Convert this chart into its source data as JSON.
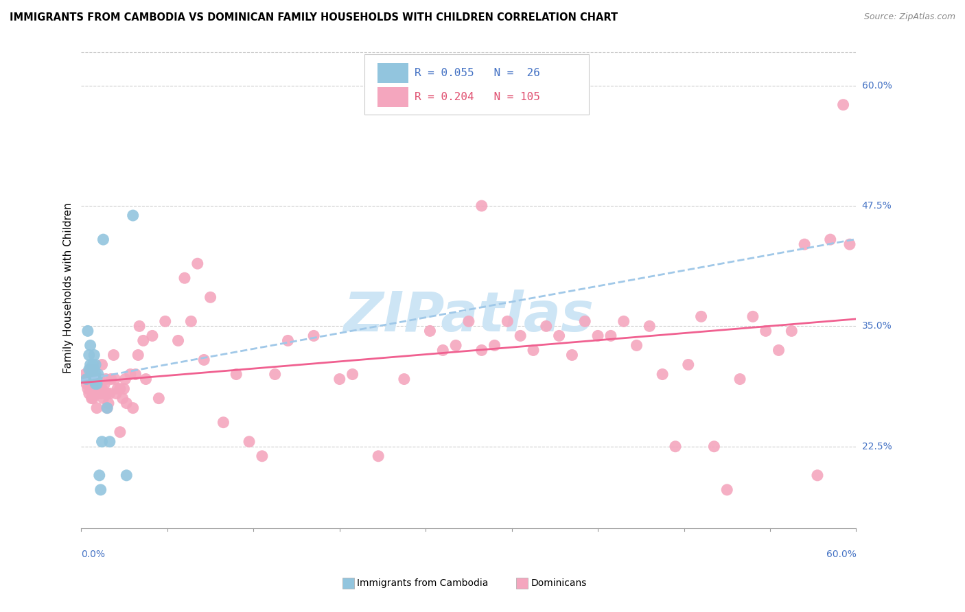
{
  "title": "IMMIGRANTS FROM CAMBODIA VS DOMINICAN FAMILY HOUSEHOLDS WITH CHILDREN CORRELATION CHART",
  "source": "Source: ZipAtlas.com",
  "ylabel": "Family Households with Children",
  "xmin": 0.0,
  "xmax": 0.6,
  "ymin": 0.14,
  "ymax": 0.64,
  "color_blue": "#92c5de",
  "color_pink": "#f4a6be",
  "color_blue_line": "#92c5de",
  "color_pink_line": "#f4607a",
  "watermark_color": "#cde5f5",
  "grid_color": "#cccccc",
  "right_label_color": "#4472c4",
  "blue_x": [
    0.004,
    0.005,
    0.006,
    0.006,
    0.007,
    0.007,
    0.008,
    0.008,
    0.009,
    0.009,
    0.01,
    0.01,
    0.011,
    0.011,
    0.011,
    0.012,
    0.012,
    0.013,
    0.014,
    0.015,
    0.016,
    0.017,
    0.02,
    0.022,
    0.035,
    0.04
  ],
  "blue_y": [
    0.295,
    0.345,
    0.32,
    0.305,
    0.33,
    0.31,
    0.305,
    0.3,
    0.31,
    0.295,
    0.305,
    0.32,
    0.29,
    0.3,
    0.31,
    0.29,
    0.295,
    0.3,
    0.195,
    0.18,
    0.23,
    0.44,
    0.265,
    0.23,
    0.195,
    0.465
  ],
  "pink_x": [
    0.003,
    0.004,
    0.005,
    0.005,
    0.006,
    0.006,
    0.007,
    0.007,
    0.008,
    0.008,
    0.009,
    0.009,
    0.01,
    0.01,
    0.011,
    0.012,
    0.012,
    0.013,
    0.013,
    0.014,
    0.015,
    0.015,
    0.016,
    0.016,
    0.017,
    0.018,
    0.018,
    0.019,
    0.02,
    0.02,
    0.021,
    0.022,
    0.023,
    0.025,
    0.026,
    0.027,
    0.028,
    0.03,
    0.03,
    0.032,
    0.033,
    0.034,
    0.035,
    0.038,
    0.04,
    0.042,
    0.044,
    0.045,
    0.048,
    0.05,
    0.055,
    0.06,
    0.065,
    0.075,
    0.08,
    0.085,
    0.09,
    0.095,
    0.1,
    0.11,
    0.12,
    0.13,
    0.14,
    0.15,
    0.16,
    0.18,
    0.2,
    0.21,
    0.23,
    0.25,
    0.27,
    0.28,
    0.29,
    0.3,
    0.31,
    0.32,
    0.33,
    0.34,
    0.35,
    0.36,
    0.37,
    0.38,
    0.39,
    0.4,
    0.41,
    0.42,
    0.43,
    0.44,
    0.45,
    0.46,
    0.47,
    0.48,
    0.49,
    0.5,
    0.51,
    0.52,
    0.53,
    0.54,
    0.55,
    0.56,
    0.57,
    0.58,
    0.59,
    0.595,
    0.31
  ],
  "pink_y": [
    0.3,
    0.29,
    0.285,
    0.295,
    0.28,
    0.295,
    0.285,
    0.305,
    0.275,
    0.295,
    0.275,
    0.305,
    0.28,
    0.29,
    0.295,
    0.265,
    0.285,
    0.28,
    0.295,
    0.295,
    0.28,
    0.29,
    0.285,
    0.31,
    0.275,
    0.28,
    0.29,
    0.295,
    0.265,
    0.28,
    0.27,
    0.28,
    0.295,
    0.32,
    0.295,
    0.28,
    0.285,
    0.24,
    0.285,
    0.275,
    0.285,
    0.295,
    0.27,
    0.3,
    0.265,
    0.3,
    0.32,
    0.35,
    0.335,
    0.295,
    0.34,
    0.275,
    0.355,
    0.335,
    0.4,
    0.355,
    0.415,
    0.315,
    0.38,
    0.25,
    0.3,
    0.23,
    0.215,
    0.3,
    0.335,
    0.34,
    0.295,
    0.3,
    0.215,
    0.295,
    0.345,
    0.325,
    0.33,
    0.355,
    0.325,
    0.33,
    0.355,
    0.34,
    0.325,
    0.35,
    0.34,
    0.32,
    0.355,
    0.34,
    0.34,
    0.355,
    0.33,
    0.35,
    0.3,
    0.225,
    0.31,
    0.36,
    0.225,
    0.18,
    0.295,
    0.36,
    0.345,
    0.325,
    0.345,
    0.435,
    0.195,
    0.44,
    0.58,
    0.435,
    0.475
  ]
}
